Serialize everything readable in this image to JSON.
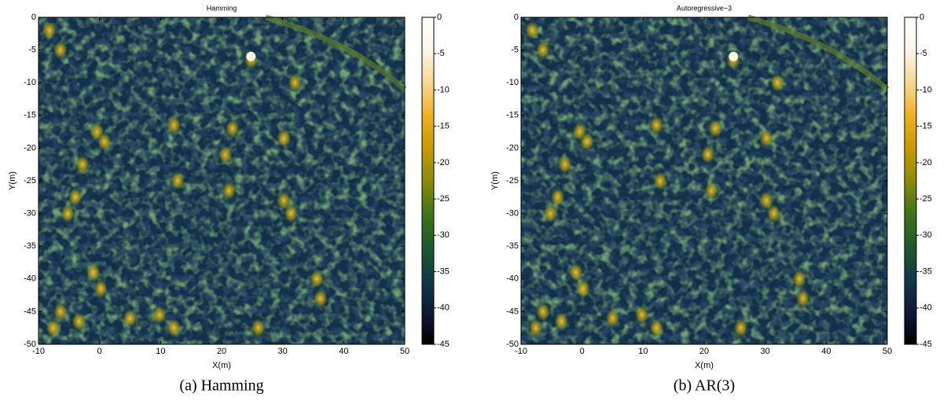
{
  "chart_data": [
    {
      "type": "heatmap",
      "title": "Hamming",
      "caption": "(a) Hamming",
      "xlabel": "X(m)",
      "ylabel": "Y(m)",
      "xlim": [
        -10,
        50
      ],
      "ylim": [
        -50,
        0
      ],
      "xticks": [
        -10,
        0,
        10,
        20,
        30,
        40,
        50
      ],
      "yticks": [
        0,
        -5,
        -10,
        -15,
        -20,
        -25,
        -30,
        -35,
        -40,
        -45,
        -50
      ],
      "clim": [
        -45,
        0
      ],
      "cticks": [
        0,
        -5,
        -10,
        -15,
        -20,
        -25,
        -30,
        -35,
        -40,
        -45
      ],
      "colormap": [
        "#000000",
        "#0d1a3a",
        "#123a48",
        "#1d5a2a",
        "#3f7416",
        "#8a8c08",
        "#c99a00",
        "#f0b020",
        "#f6d890",
        "#fff6e8",
        "#ffffff"
      ]
    },
    {
      "type": "heatmap",
      "title": "Autoregressive−3",
      "caption": "(b) AR(3)",
      "xlabel": "X(m)",
      "ylabel": "Y(m)",
      "xlim": [
        -10,
        50
      ],
      "ylim": [
        -50,
        0
      ],
      "xticks": [
        -10,
        0,
        10,
        20,
        30,
        40,
        50
      ],
      "yticks": [
        0,
        -5,
        -10,
        -15,
        -20,
        -25,
        -30,
        -35,
        -40,
        -45,
        -50
      ],
      "clim": [
        -45,
        0
      ],
      "cticks": [
        0,
        -5,
        -10,
        -15,
        -20,
        -25,
        -30,
        -35,
        -40,
        -45
      ],
      "colormap": [
        "#000000",
        "#0d1a3a",
        "#123a48",
        "#1d5a2a",
        "#3f7416",
        "#8a8c08",
        "#c99a00",
        "#f0b020",
        "#f6d890",
        "#fff6e8",
        "#ffffff"
      ]
    }
  ]
}
